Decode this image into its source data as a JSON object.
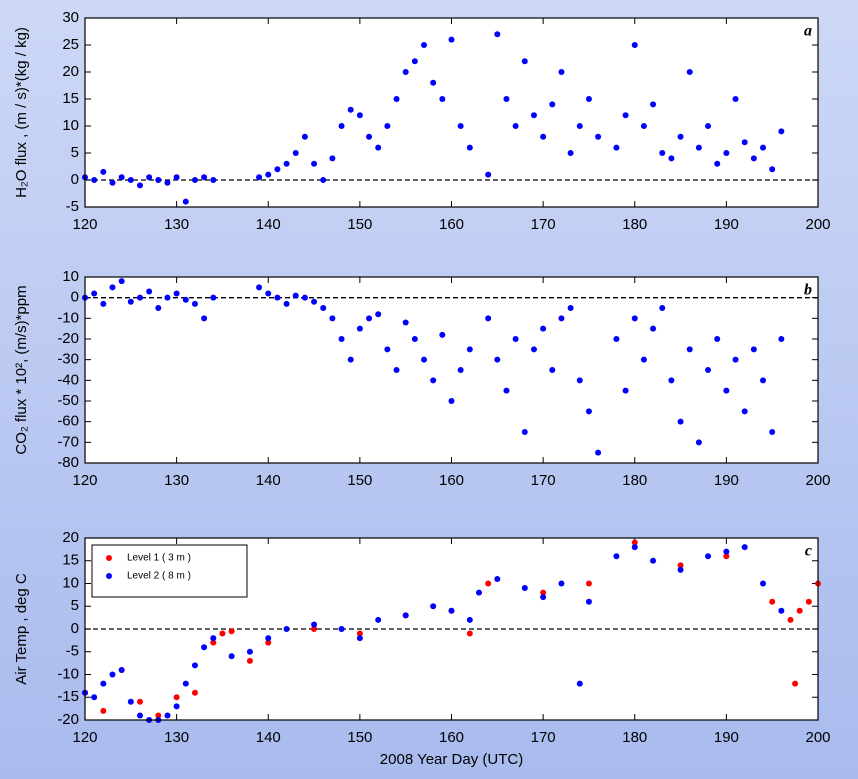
{
  "chart_data": [
    {
      "type": "scatter",
      "panel_label": "a",
      "ylabel": "H₂O flux ,  (m / s)*(kg / kg)",
      "xlim": [
        120,
        200
      ],
      "xticks": [
        120,
        130,
        140,
        150,
        160,
        170,
        180,
        190,
        200
      ],
      "ylim": [
        -5,
        30
      ],
      "yticks": [
        -5,
        0,
        5,
        10,
        15,
        20,
        25,
        30
      ],
      "reference_line": 0,
      "series": [
        {
          "color": "#0000ff",
          "x": [
            120,
            121,
            122,
            123,
            124,
            125,
            126,
            127,
            128,
            129,
            130,
            131,
            132,
            133,
            134,
            139,
            140,
            141,
            142,
            143,
            144,
            145,
            146,
            147,
            148,
            149,
            150,
            151,
            152,
            153,
            154,
            155,
            156,
            157,
            158,
            159,
            160,
            161,
            162,
            164,
            165,
            166,
            167,
            168,
            169,
            170,
            171,
            172,
            173,
            174,
            175,
            176,
            178,
            179,
            180,
            181,
            182,
            183,
            184,
            185,
            186,
            187,
            188,
            189,
            190,
            191,
            192,
            193,
            194,
            195,
            196
          ],
          "values": [
            0.5,
            0,
            1.5,
            -0.5,
            0.5,
            0,
            -1,
            0.5,
            0,
            -0.5,
            0.5,
            -4,
            0,
            0.5,
            0,
            0.5,
            1,
            2,
            3,
            5,
            8,
            3,
            0,
            4,
            10,
            13,
            12,
            8,
            6,
            10,
            15,
            20,
            22,
            25,
            18,
            15,
            26,
            10,
            6,
            1,
            27,
            15,
            10,
            22,
            12,
            8,
            14,
            20,
            5,
            10,
            15,
            8,
            6,
            12,
            25,
            10,
            14,
            5,
            4,
            8,
            20,
            6,
            10,
            3,
            5,
            15,
            7,
            4,
            6,
            2,
            9
          ]
        }
      ]
    },
    {
      "type": "scatter",
      "panel_label": "b",
      "ylabel": "CO₂ flux * 10², (m/s)*ppm",
      "xlim": [
        120,
        200
      ],
      "xticks": [
        120,
        130,
        140,
        150,
        160,
        170,
        180,
        190,
        200
      ],
      "ylim": [
        -80,
        10
      ],
      "yticks": [
        -80,
        -70,
        -60,
        -50,
        -40,
        -30,
        -20,
        -10,
        0,
        10
      ],
      "reference_line": 0,
      "series": [
        {
          "color": "#0000ff",
          "x": [
            120,
            121,
            122,
            123,
            124,
            125,
            126,
            127,
            128,
            129,
            130,
            131,
            132,
            133,
            134,
            139,
            140,
            141,
            142,
            143,
            144,
            145,
            146,
            147,
            148,
            149,
            150,
            151,
            152,
            153,
            154,
            155,
            156,
            157,
            158,
            159,
            160,
            161,
            162,
            164,
            165,
            166,
            167,
            168,
            169,
            170,
            171,
            172,
            173,
            174,
            175,
            176,
            178,
            179,
            180,
            181,
            182,
            183,
            184,
            185,
            186,
            187,
            188,
            189,
            190,
            191,
            192,
            193,
            194,
            195,
            196
          ],
          "values": [
            0,
            2,
            -3,
            5,
            8,
            -2,
            0,
            3,
            -5,
            0,
            2,
            -1,
            -3,
            -10,
            0,
            5,
            2,
            0,
            -3,
            1,
            0,
            -2,
            -5,
            -10,
            -20,
            -30,
            -15,
            -10,
            -8,
            -25,
            -35,
            -12,
            -20,
            -30,
            -40,
            -18,
            -50,
            -35,
            -25,
            -10,
            -30,
            -45,
            -20,
            -65,
            -25,
            -15,
            -35,
            -10,
            -5,
            -40,
            -55,
            -75,
            -20,
            -45,
            -10,
            -30,
            -15,
            -5,
            -40,
            -60,
            -25,
            -70,
            -35,
            -20,
            -45,
            -30,
            -55,
            -25,
            -40,
            -65,
            -20
          ]
        }
      ]
    },
    {
      "type": "scatter",
      "panel_label": "c",
      "ylabel": "Air Temp ,  deg C",
      "xlabel": "2008 Year Day (UTC)",
      "xlim": [
        120,
        200
      ],
      "xticks": [
        120,
        130,
        140,
        150,
        160,
        170,
        180,
        190,
        200
      ],
      "ylim": [
        -20,
        20
      ],
      "yticks": [
        -20,
        -15,
        -10,
        -5,
        0,
        5,
        10,
        15,
        20
      ],
      "reference_line": 0,
      "series": [
        {
          "name": "Level 1 ( 3 m )",
          "color": "#ff0000",
          "x": [
            120,
            122,
            124,
            126,
            128,
            130,
            132,
            134,
            135,
            136,
            138,
            140,
            145,
            150,
            155,
            160,
            162,
            164,
            170,
            175,
            180,
            185,
            190,
            195,
            197,
            197.5,
            198,
            199,
            200
          ],
          "values": [
            -14,
            -18,
            -9,
            -16,
            -19,
            -15,
            -14,
            -3,
            -1,
            -0.5,
            -7,
            -3,
            0,
            -1,
            3,
            4,
            -1,
            10,
            8,
            10,
            19,
            14,
            16,
            6,
            2,
            -12,
            4,
            6,
            10
          ]
        },
        {
          "name": "Level 2 ( 8 m )",
          "color": "#0000ff",
          "x": [
            120,
            121,
            122,
            123,
            124,
            125,
            126,
            127,
            128,
            129,
            130,
            131,
            132,
            133,
            134,
            136,
            138,
            140,
            142,
            145,
            148,
            150,
            152,
            155,
            158,
            160,
            162,
            163,
            165,
            168,
            170,
            172,
            174,
            175,
            178,
            180,
            182,
            185,
            188,
            190,
            192,
            194,
            196
          ],
          "values": [
            -14,
            -15,
            -12,
            -10,
            -9,
            -16,
            -19,
            -20,
            -20,
            -19,
            -17,
            -12,
            -8,
            -4,
            -2,
            -6,
            -5,
            -2,
            0,
            1,
            0,
            -2,
            2,
            3,
            5,
            4,
            2,
            8,
            11,
            9,
            7,
            10,
            -12,
            6,
            16,
            18,
            15,
            13,
            16,
            17,
            18,
            10,
            4
          ]
        }
      ]
    }
  ]
}
